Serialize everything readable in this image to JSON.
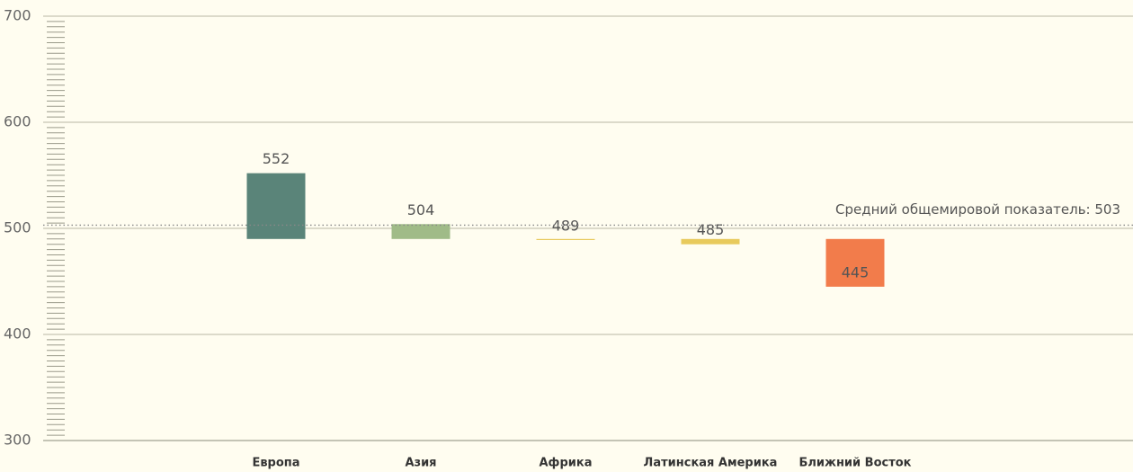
{
  "chart_data": {
    "type": "bar",
    "categories": [
      "Европа",
      "Азия",
      "Африка",
      "Латинская Америка",
      "Ближний Восток"
    ],
    "values": [
      552,
      504,
      489,
      485,
      445
    ],
    "colors": [
      "#5a8479",
      "#a0bb88",
      "#e8ca5c",
      "#e8ca5c",
      "#f27c4b"
    ],
    "ylim": [
      300,
      700
    ],
    "yticks": [
      300,
      400,
      500,
      600,
      700
    ],
    "grid": true,
    "minor_tick_interval": 5,
    "average": {
      "value": 503,
      "label": "Средний общемировой показатель: 503"
    }
  }
}
